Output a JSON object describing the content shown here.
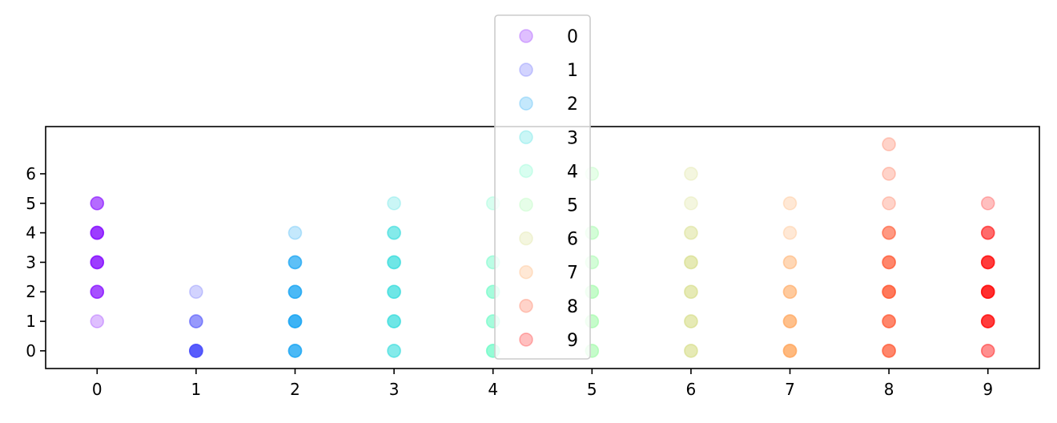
{
  "chart_data": {
    "type": "scatter",
    "title": "",
    "xlabel": "",
    "ylabel": "",
    "xlim": [
      -0.52,
      9.52
    ],
    "ylim": [
      -0.6,
      7.6
    ],
    "xticks": [
      "0",
      "1",
      "2",
      "3",
      "4",
      "5",
      "6",
      "7",
      "8",
      "9"
    ],
    "yticks": [
      "0",
      "1",
      "2",
      "3",
      "4",
      "5",
      "6"
    ],
    "grid": false,
    "legend": {
      "placement": "top-center, overlapping axes",
      "entries": [
        "0",
        "1",
        "2",
        "3",
        "4",
        "5",
        "6",
        "7",
        "8",
        "9"
      ]
    },
    "point_opacity": 0.25,
    "series": [
      {
        "name": "0",
        "color": "#8000ff",
        "x": [
          0,
          0,
          0,
          0,
          0,
          0,
          0,
          0,
          0,
          0,
          0,
          0,
          0,
          0,
          0,
          0,
          0,
          0
        ],
        "y": [
          1,
          2,
          2,
          2,
          2,
          3,
          3,
          3,
          3,
          3,
          4,
          4,
          4,
          4,
          4,
          5,
          5,
          5
        ]
      },
      {
        "name": "1",
        "color": "#4a4ffd",
        "x": [
          1,
          1,
          1,
          1,
          1,
          1,
          1,
          1,
          1,
          1,
          1,
          1,
          1
        ],
        "y": [
          0,
          0,
          0,
          0,
          0,
          0,
          0,
          0,
          0,
          1,
          1,
          1,
          2
        ]
      },
      {
        "name": "2",
        "color": "#13a2f2",
        "x": [
          2,
          2,
          2,
          2,
          2,
          2,
          2,
          2,
          2,
          2,
          2,
          2,
          2,
          2,
          2,
          2,
          2,
          2,
          2,
          2,
          2
        ],
        "y": [
          0,
          0,
          0,
          0,
          0,
          1,
          1,
          1,
          1,
          1,
          1,
          2,
          2,
          2,
          2,
          2,
          3,
          3,
          3,
          3,
          4
        ]
      },
      {
        "name": "3",
        "color": "#2adddd",
        "x": [
          3,
          3,
          3,
          3,
          3,
          3,
          3,
          3,
          3,
          3,
          3,
          3,
          3,
          3,
          3,
          3,
          3,
          3,
          3
        ],
        "y": [
          0,
          0,
          0,
          1,
          1,
          1,
          1,
          2,
          2,
          2,
          2,
          3,
          3,
          3,
          3,
          4,
          4,
          4,
          5
        ]
      },
      {
        "name": "4",
        "color": "#62fbc4",
        "x": [
          4,
          4,
          4,
          4,
          4,
          4,
          4,
          4,
          4,
          4,
          4,
          4,
          4
        ],
        "y": [
          0,
          0,
          0,
          0,
          1,
          1,
          1,
          2,
          2,
          2,
          3,
          3,
          5
        ]
      },
      {
        "name": "5",
        "color": "#9cfba4",
        "x": [
          5,
          5,
          5,
          5,
          5,
          5,
          5,
          5,
          5,
          5,
          5,
          5,
          5,
          5
        ],
        "y": [
          0,
          0,
          0,
          1,
          1,
          1,
          2,
          2,
          2,
          3,
          3,
          4,
          4,
          6
        ]
      },
      {
        "name": "6",
        "color": "#d4dd80",
        "x": [
          6,
          6,
          6,
          6,
          6,
          6,
          6,
          6,
          6,
          6,
          6,
          6,
          6,
          6,
          6,
          6
        ],
        "y": [
          0,
          0,
          0,
          1,
          1,
          1,
          2,
          2,
          2,
          3,
          3,
          3,
          4,
          4,
          5,
          6
        ]
      },
      {
        "name": "7",
        "color": "#ffa256",
        "x": [
          7,
          7,
          7,
          7,
          7,
          7,
          7,
          7,
          7,
          7,
          7,
          7,
          7,
          7,
          7,
          7
        ],
        "y": [
          0,
          0,
          0,
          0,
          0,
          1,
          1,
          1,
          1,
          2,
          2,
          2,
          3,
          3,
          4,
          5
        ]
      },
      {
        "name": "8",
        "color": "#ff4f28",
        "x": [
          8,
          8,
          8,
          8,
          8,
          8,
          8,
          8,
          8,
          8,
          8,
          8,
          8,
          8,
          8,
          8,
          8,
          8,
          8,
          8,
          8,
          8,
          8
        ],
        "y": [
          0,
          0,
          0,
          0,
          1,
          1,
          1,
          1,
          2,
          2,
          2,
          2,
          2,
          3,
          3,
          3,
          3,
          4,
          4,
          4,
          5,
          6,
          7
        ]
      },
      {
        "name": "9",
        "color": "#ff0000",
        "x": [
          9,
          9,
          9,
          9,
          9,
          9,
          9,
          9,
          9,
          9,
          9,
          9,
          9,
          9,
          9,
          9,
          9,
          9,
          9,
          9,
          9,
          9
        ],
        "y": [
          0,
          0,
          1,
          1,
          1,
          1,
          1,
          2,
          2,
          2,
          2,
          2,
          2,
          3,
          3,
          3,
          3,
          3,
          4,
          4,
          4,
          5
        ]
      }
    ]
  }
}
